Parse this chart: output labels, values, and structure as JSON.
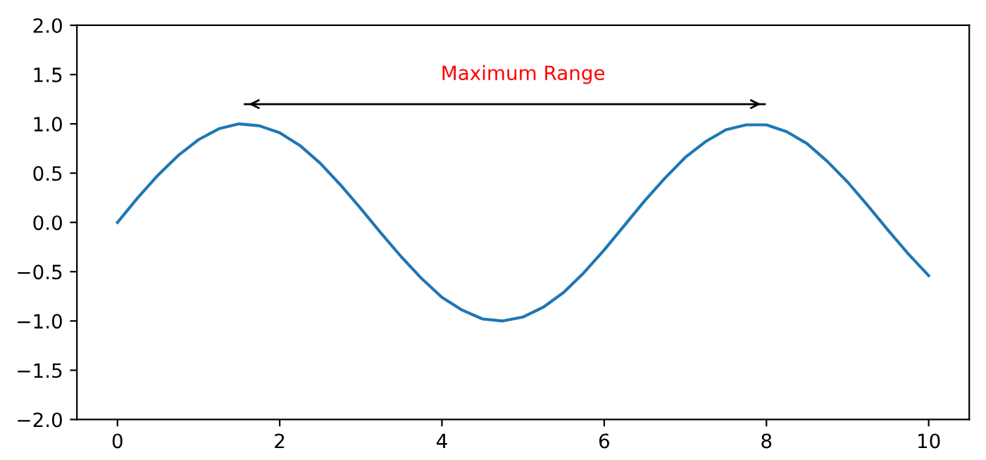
{
  "chart_data": {
    "type": "line",
    "series": [
      {
        "color": "#1f77b4",
        "x": [
          0,
          0.25,
          0.5,
          0.75,
          1,
          1.25,
          1.5,
          1.75,
          2,
          2.25,
          2.5,
          2.75,
          3,
          3.25,
          3.5,
          3.75,
          4,
          4.25,
          4.5,
          4.75,
          5,
          5.25,
          5.5,
          5.75,
          6,
          6.25,
          6.5,
          6.75,
          7,
          7.25,
          7.5,
          7.75,
          8,
          8.25,
          8.5,
          8.75,
          9,
          9.25,
          9.5,
          9.75,
          10
        ],
        "values": [
          0,
          0.25,
          0.48,
          0.68,
          0.84,
          0.95,
          1.0,
          0.98,
          0.91,
          0.78,
          0.6,
          0.38,
          0.14,
          -0.11,
          -0.35,
          -0.57,
          -0.76,
          -0.89,
          -0.98,
          -1.0,
          -0.96,
          -0.86,
          -0.71,
          -0.51,
          -0.28,
          -0.03,
          0.22,
          0.45,
          0.66,
          0.82,
          0.94,
          0.99,
          0.99,
          0.92,
          0.8,
          0.62,
          0.41,
          0.17,
          -0.08,
          -0.32,
          -0.54
        ]
      },
      {
        "color": "#000000",
        "x": [
          1.57,
          7.98
        ],
        "values": [
          1.2,
          1.2
        ]
      }
    ],
    "annotations": [
      "Maximum Range"
    ],
    "xlim": [
      -0.5,
      10.5
    ],
    "xticks": [
      0,
      2,
      4,
      6,
      8,
      10
    ],
    "ylim": [
      -2,
      2
    ],
    "yticks": [
      {
        "value": -2,
        "label": "−2.0"
      },
      {
        "value": -1.5,
        "label": "−1.5"
      },
      {
        "value": -1,
        "label": "−1.0"
      },
      {
        "value": -0.5,
        "label": "−0.5"
      },
      {
        "value": 0,
        "label": "0.0"
      },
      {
        "value": 0.5,
        "label": "0.5"
      },
      {
        "value": 1,
        "label": "1.0"
      },
      {
        "value": 1.5,
        "label": "1.5"
      },
      {
        "value": 2,
        "label": "2.0"
      }
    ],
    "grid": false,
    "legend": false
  }
}
